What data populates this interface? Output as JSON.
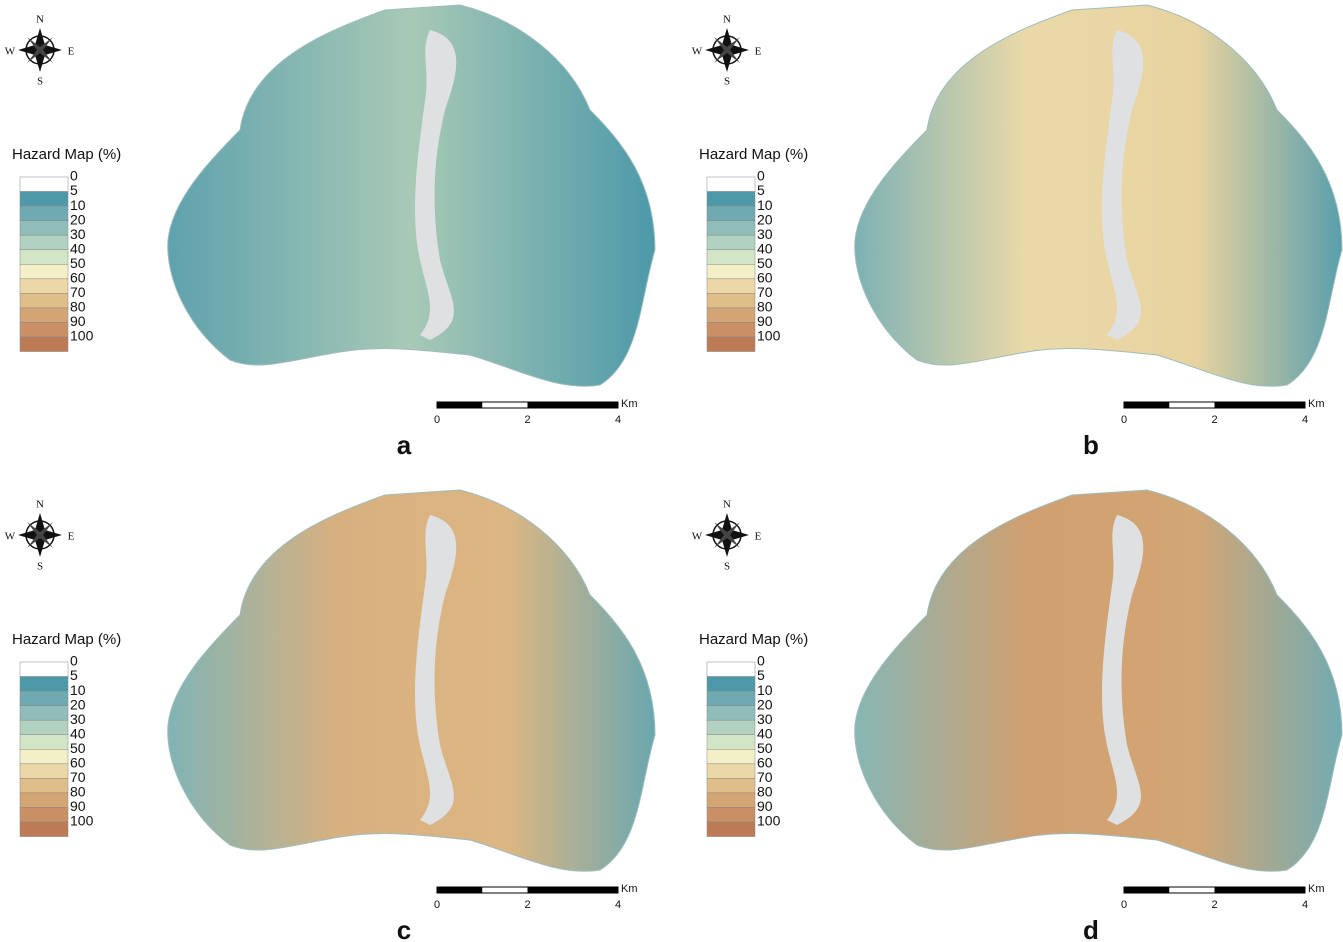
{
  "panels": [
    {
      "label": "a",
      "compass": {
        "north": "N",
        "south": "S",
        "east": "E",
        "west": "W"
      },
      "legend": {
        "title": "Hazard Map (%)",
        "labels": [
          "0",
          "5",
          "10",
          "20",
          "30",
          "40",
          "50",
          "60",
          "70",
          "80",
          "90",
          "100"
        ],
        "colors": [
          "#ffffff",
          "#4d99a9",
          "#6fa9b2",
          "#8fbdb9",
          "#b1d2c0",
          "#d2e6c6",
          "#f3f0c8",
          "#ebd8a6",
          "#e0be8a",
          "#d4a574",
          "#c99066",
          "#bd7b55"
        ]
      },
      "scale_bar": {
        "ticks": [
          "0",
          "2",
          "4"
        ],
        "unit": "Km"
      }
    },
    {
      "label": "b",
      "compass": {
        "north": "N",
        "south": "S",
        "east": "E",
        "west": "W"
      },
      "legend": {
        "title": "Hazard Map (%)",
        "labels": [
          "0",
          "5",
          "10",
          "20",
          "30",
          "40",
          "50",
          "60",
          "70",
          "80",
          "90",
          "100"
        ],
        "colors": [
          "#ffffff",
          "#4d99a9",
          "#6fa9b2",
          "#8fbdb9",
          "#b1d2c0",
          "#d2e6c6",
          "#f3f0c8",
          "#ebd8a6",
          "#e0be8a",
          "#d4a574",
          "#c99066",
          "#bd7b55"
        ]
      },
      "scale_bar": {
        "ticks": [
          "0",
          "2",
          "4"
        ],
        "unit": "Km"
      }
    },
    {
      "label": "c",
      "compass": {
        "north": "N",
        "south": "S",
        "east": "E",
        "west": "W"
      },
      "legend": {
        "title": "Hazard Map (%)",
        "labels": [
          "0",
          "5",
          "10",
          "20",
          "30",
          "40",
          "50",
          "60",
          "70",
          "80",
          "90",
          "100"
        ],
        "colors": [
          "#ffffff",
          "#4d99a9",
          "#6fa9b2",
          "#8fbdb9",
          "#b1d2c0",
          "#d2e6c6",
          "#f3f0c8",
          "#ebd8a6",
          "#e0be8a",
          "#d4a574",
          "#c99066",
          "#bd7b55"
        ]
      },
      "scale_bar": {
        "ticks": [
          "0",
          "2",
          "4"
        ],
        "unit": "Km"
      }
    },
    {
      "label": "d",
      "compass": {
        "north": "N",
        "south": "S",
        "east": "E",
        "west": "W"
      },
      "legend": {
        "title": "Hazard Map (%)",
        "labels": [
          "0",
          "5",
          "10",
          "20",
          "30",
          "40",
          "50",
          "60",
          "70",
          "80",
          "90",
          "100"
        ],
        "colors": [
          "#ffffff",
          "#4d99a9",
          "#6fa9b2",
          "#8fbdb9",
          "#b1d2c0",
          "#d2e6c6",
          "#f3f0c8",
          "#ebd8a6",
          "#e0be8a",
          "#d4a574",
          "#c99066",
          "#bd7b55"
        ]
      },
      "scale_bar": {
        "ticks": [
          "0",
          "2",
          "4"
        ],
        "unit": "Km"
      }
    }
  ]
}
